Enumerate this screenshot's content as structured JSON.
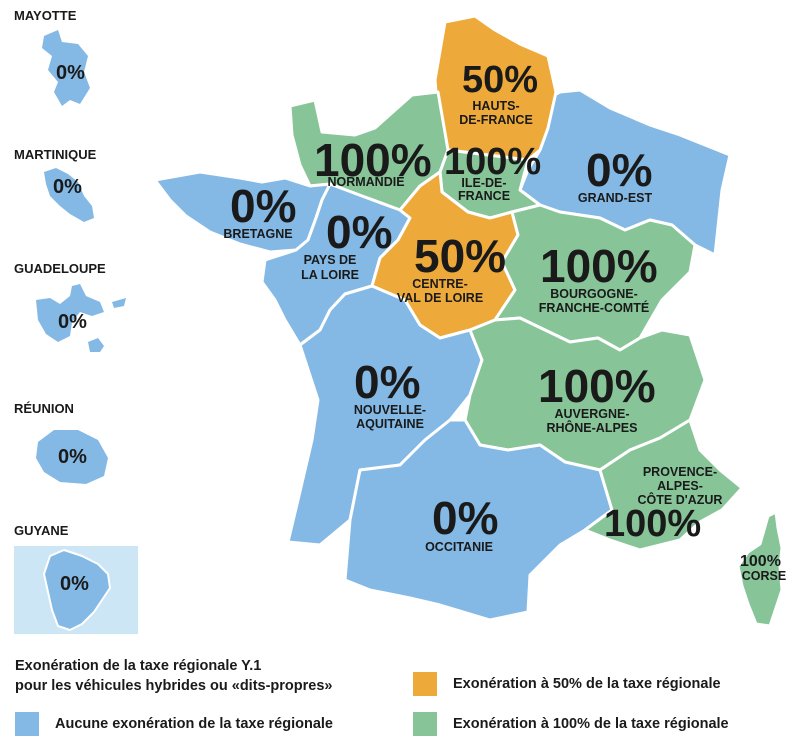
{
  "colors": {
    "none": "#84b9e6",
    "half": "#edaa3b",
    "full": "#87c598",
    "guyane_border": "#cde6f6"
  },
  "regions": {
    "hauts_de_france": {
      "pct": "50%",
      "name_l1": "HAUTS-",
      "name_l2": "DE-FRANCE",
      "exemption": "half"
    },
    "normandie": {
      "pct": "100%",
      "name_l1": "NORMANDIE",
      "exemption": "full"
    },
    "ile_de_france": {
      "pct": "100%",
      "name_l1": "ILE-DE-",
      "name_l2": "FRANCE",
      "exemption": "full"
    },
    "grand_est": {
      "pct": "0%",
      "name_l1": "GRAND-EST",
      "exemption": "none"
    },
    "bretagne": {
      "pct": "0%",
      "name_l1": "BRETAGNE",
      "exemption": "none"
    },
    "pays_de_la_loire": {
      "pct": "0%",
      "name_l1": "PAYS DE",
      "name_l2": "LA LOIRE",
      "exemption": "none"
    },
    "centre_val_de_loire": {
      "pct": "50%",
      "name_l1": "CENTRE-",
      "name_l2": "VAL DE LOIRE",
      "exemption": "half"
    },
    "bourgogne_franche_comte": {
      "pct": "100%",
      "name_l1": "BOURGOGNE-",
      "name_l2": "FRANCHE-COMTÉ",
      "exemption": "full"
    },
    "nouvelle_aquitaine": {
      "pct": "0%",
      "name_l1": "NOUVELLE-",
      "name_l2": "AQUITAINE",
      "exemption": "none"
    },
    "auvergne_rhone_alpes": {
      "pct": "100%",
      "name_l1": "AUVERGNE-",
      "name_l2": "RHÔNE-ALPES",
      "exemption": "full"
    },
    "occitanie": {
      "pct": "0%",
      "name_l1": "OCCITANIE",
      "exemption": "none"
    },
    "provence_alpes_cote_dazur": {
      "pct": "100%",
      "name_l1": "PROVENCE-",
      "name_l2": "ALPES-",
      "name_l3": "CÔTE D'AZUR",
      "exemption": "full"
    },
    "corse": {
      "pct": "100%",
      "name_l1": "CORSE",
      "exemption": "full"
    }
  },
  "overseas": [
    {
      "title": "MAYOTTE",
      "pct": "0%"
    },
    {
      "title": "MARTINIQUE",
      "pct": "0%"
    },
    {
      "title": "GUADELOUPE",
      "pct": "0%"
    },
    {
      "title": "RÉUNION",
      "pct": "0%"
    },
    {
      "title": "GUYANE",
      "pct": "0%"
    }
  ],
  "legend": {
    "title_l1": "Exonération de la taxe régionale Y.1",
    "title_l2": "pour les véhicules hybrides ou «dits-propres»",
    "none_label": "Aucune exonération de la taxe régionale",
    "half_label": "Exonération à 50% de la taxe régionale",
    "full_label": "Exonération à 100% de la taxe régionale"
  }
}
